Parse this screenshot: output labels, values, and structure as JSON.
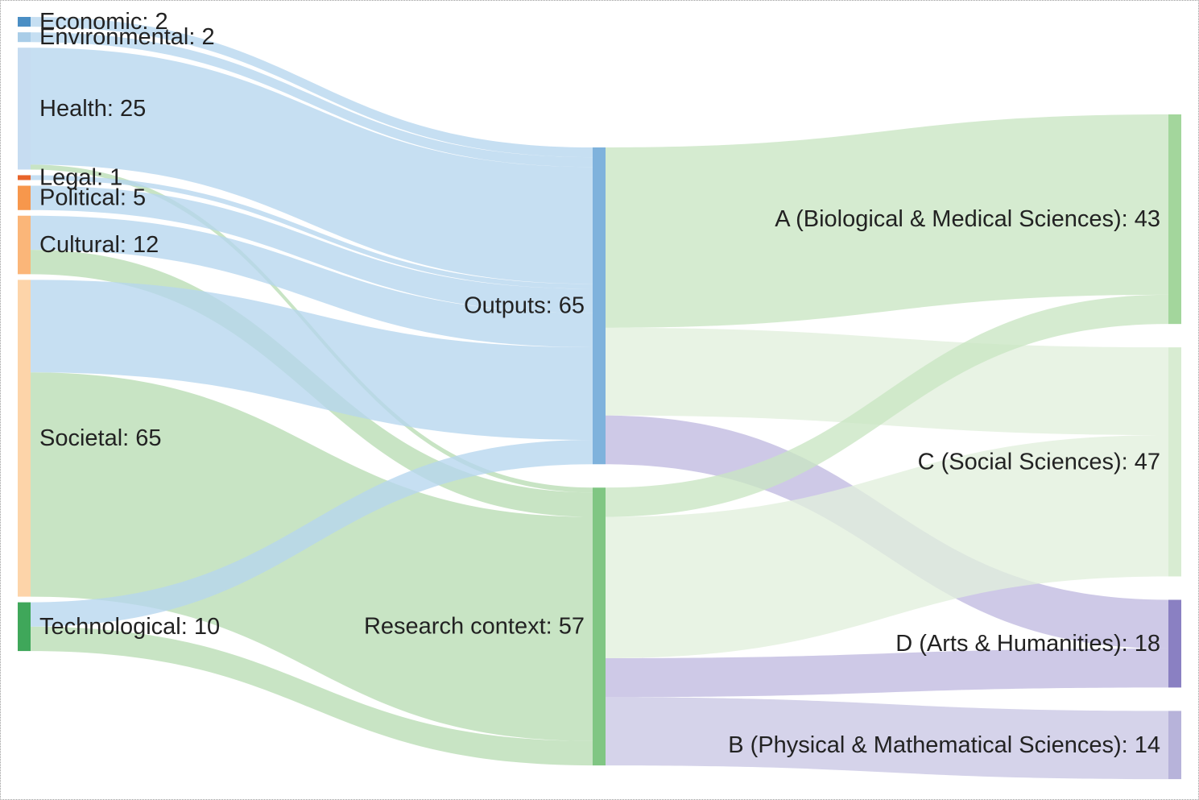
{
  "chart_data": {
    "type": "sankey",
    "title": "",
    "nodes": [
      {
        "id": "economic",
        "label": "Economic: 2",
        "name": "Economic",
        "value": 2,
        "column": 0,
        "color": "#4a8ec4"
      },
      {
        "id": "environmental",
        "label": "Environmental: 2",
        "name": "Environmental",
        "value": 2,
        "column": 0,
        "color": "#a9cde8"
      },
      {
        "id": "health",
        "label": "Health: 25",
        "name": "Health",
        "value": 25,
        "column": 0,
        "color": "#c6dcf1"
      },
      {
        "id": "legal",
        "label": "Legal: 1",
        "name": "Legal",
        "value": 1,
        "column": 0,
        "color": "#e8642a"
      },
      {
        "id": "political",
        "label": "Political: 5",
        "name": "Political",
        "value": 5,
        "column": 0,
        "color": "#f7974c"
      },
      {
        "id": "cultural",
        "label": "Cultural: 12",
        "name": "Cultural",
        "value": 12,
        "column": 0,
        "color": "#fbb679"
      },
      {
        "id": "societal",
        "label": "Societal: 65",
        "name": "Societal",
        "value": 65,
        "column": 0,
        "color": "#fdd4a9"
      },
      {
        "id": "technological",
        "label": "Technological: 10",
        "name": "Technological",
        "value": 10,
        "column": 0,
        "color": "#3fa75a"
      },
      {
        "id": "outputs",
        "label": "Outputs: 65",
        "name": "Outputs",
        "value": 65,
        "column": 1,
        "color": "#7fb2dc"
      },
      {
        "id": "research",
        "label": "Research context: 57",
        "name": "Research context",
        "value": 57,
        "column": 1,
        "color": "#80c683"
      },
      {
        "id": "A",
        "label": "A (Biological & Medical Sciences): 43",
        "name": "A (Biological & Medical Sciences)",
        "value": 43,
        "column": 2,
        "color": "#a3d69c"
      },
      {
        "id": "C",
        "label": "C (Social Sciences): 47",
        "name": "C (Social Sciences)",
        "value": 47,
        "column": 2,
        "color": "#d8ecd2"
      },
      {
        "id": "D",
        "label": "D (Arts & Humanities): 18",
        "name": "D (Arts & Humanities)",
        "value": 18,
        "column": 2,
        "color": "#8a80c2"
      },
      {
        "id": "B",
        "label": "B (Physical & Mathematical Sciences): 14",
        "name": "B (Physical & Mathematical Sciences)",
        "value": 14,
        "column": 2,
        "color": "#b7b3da"
      }
    ],
    "links": [
      {
        "source": "economic",
        "target": "outputs",
        "value": 2
      },
      {
        "source": "environmental",
        "target": "outputs",
        "value": 2
      },
      {
        "source": "health",
        "target": "outputs",
        "value": 24
      },
      {
        "source": "health",
        "target": "research",
        "value": 1
      },
      {
        "source": "legal",
        "target": "outputs",
        "value": 1
      },
      {
        "source": "political",
        "target": "outputs",
        "value": 5
      },
      {
        "source": "cultural",
        "target": "outputs",
        "value": 7
      },
      {
        "source": "cultural",
        "target": "research",
        "value": 5
      },
      {
        "source": "societal",
        "target": "outputs",
        "value": 19
      },
      {
        "source": "societal",
        "target": "research",
        "value": 46
      },
      {
        "source": "technological",
        "target": "outputs",
        "value": 5
      },
      {
        "source": "technological",
        "target": "research",
        "value": 5
      },
      {
        "source": "outputs",
        "target": "A",
        "value": 37
      },
      {
        "source": "outputs",
        "target": "C",
        "value": 18
      },
      {
        "source": "outputs",
        "target": "D",
        "value": 10
      },
      {
        "source": "research",
        "target": "A",
        "value": 6
      },
      {
        "source": "research",
        "target": "C",
        "value": 29
      },
      {
        "source": "research",
        "target": "D",
        "value": 8
      },
      {
        "source": "research",
        "target": "B",
        "value": 14
      }
    ]
  }
}
